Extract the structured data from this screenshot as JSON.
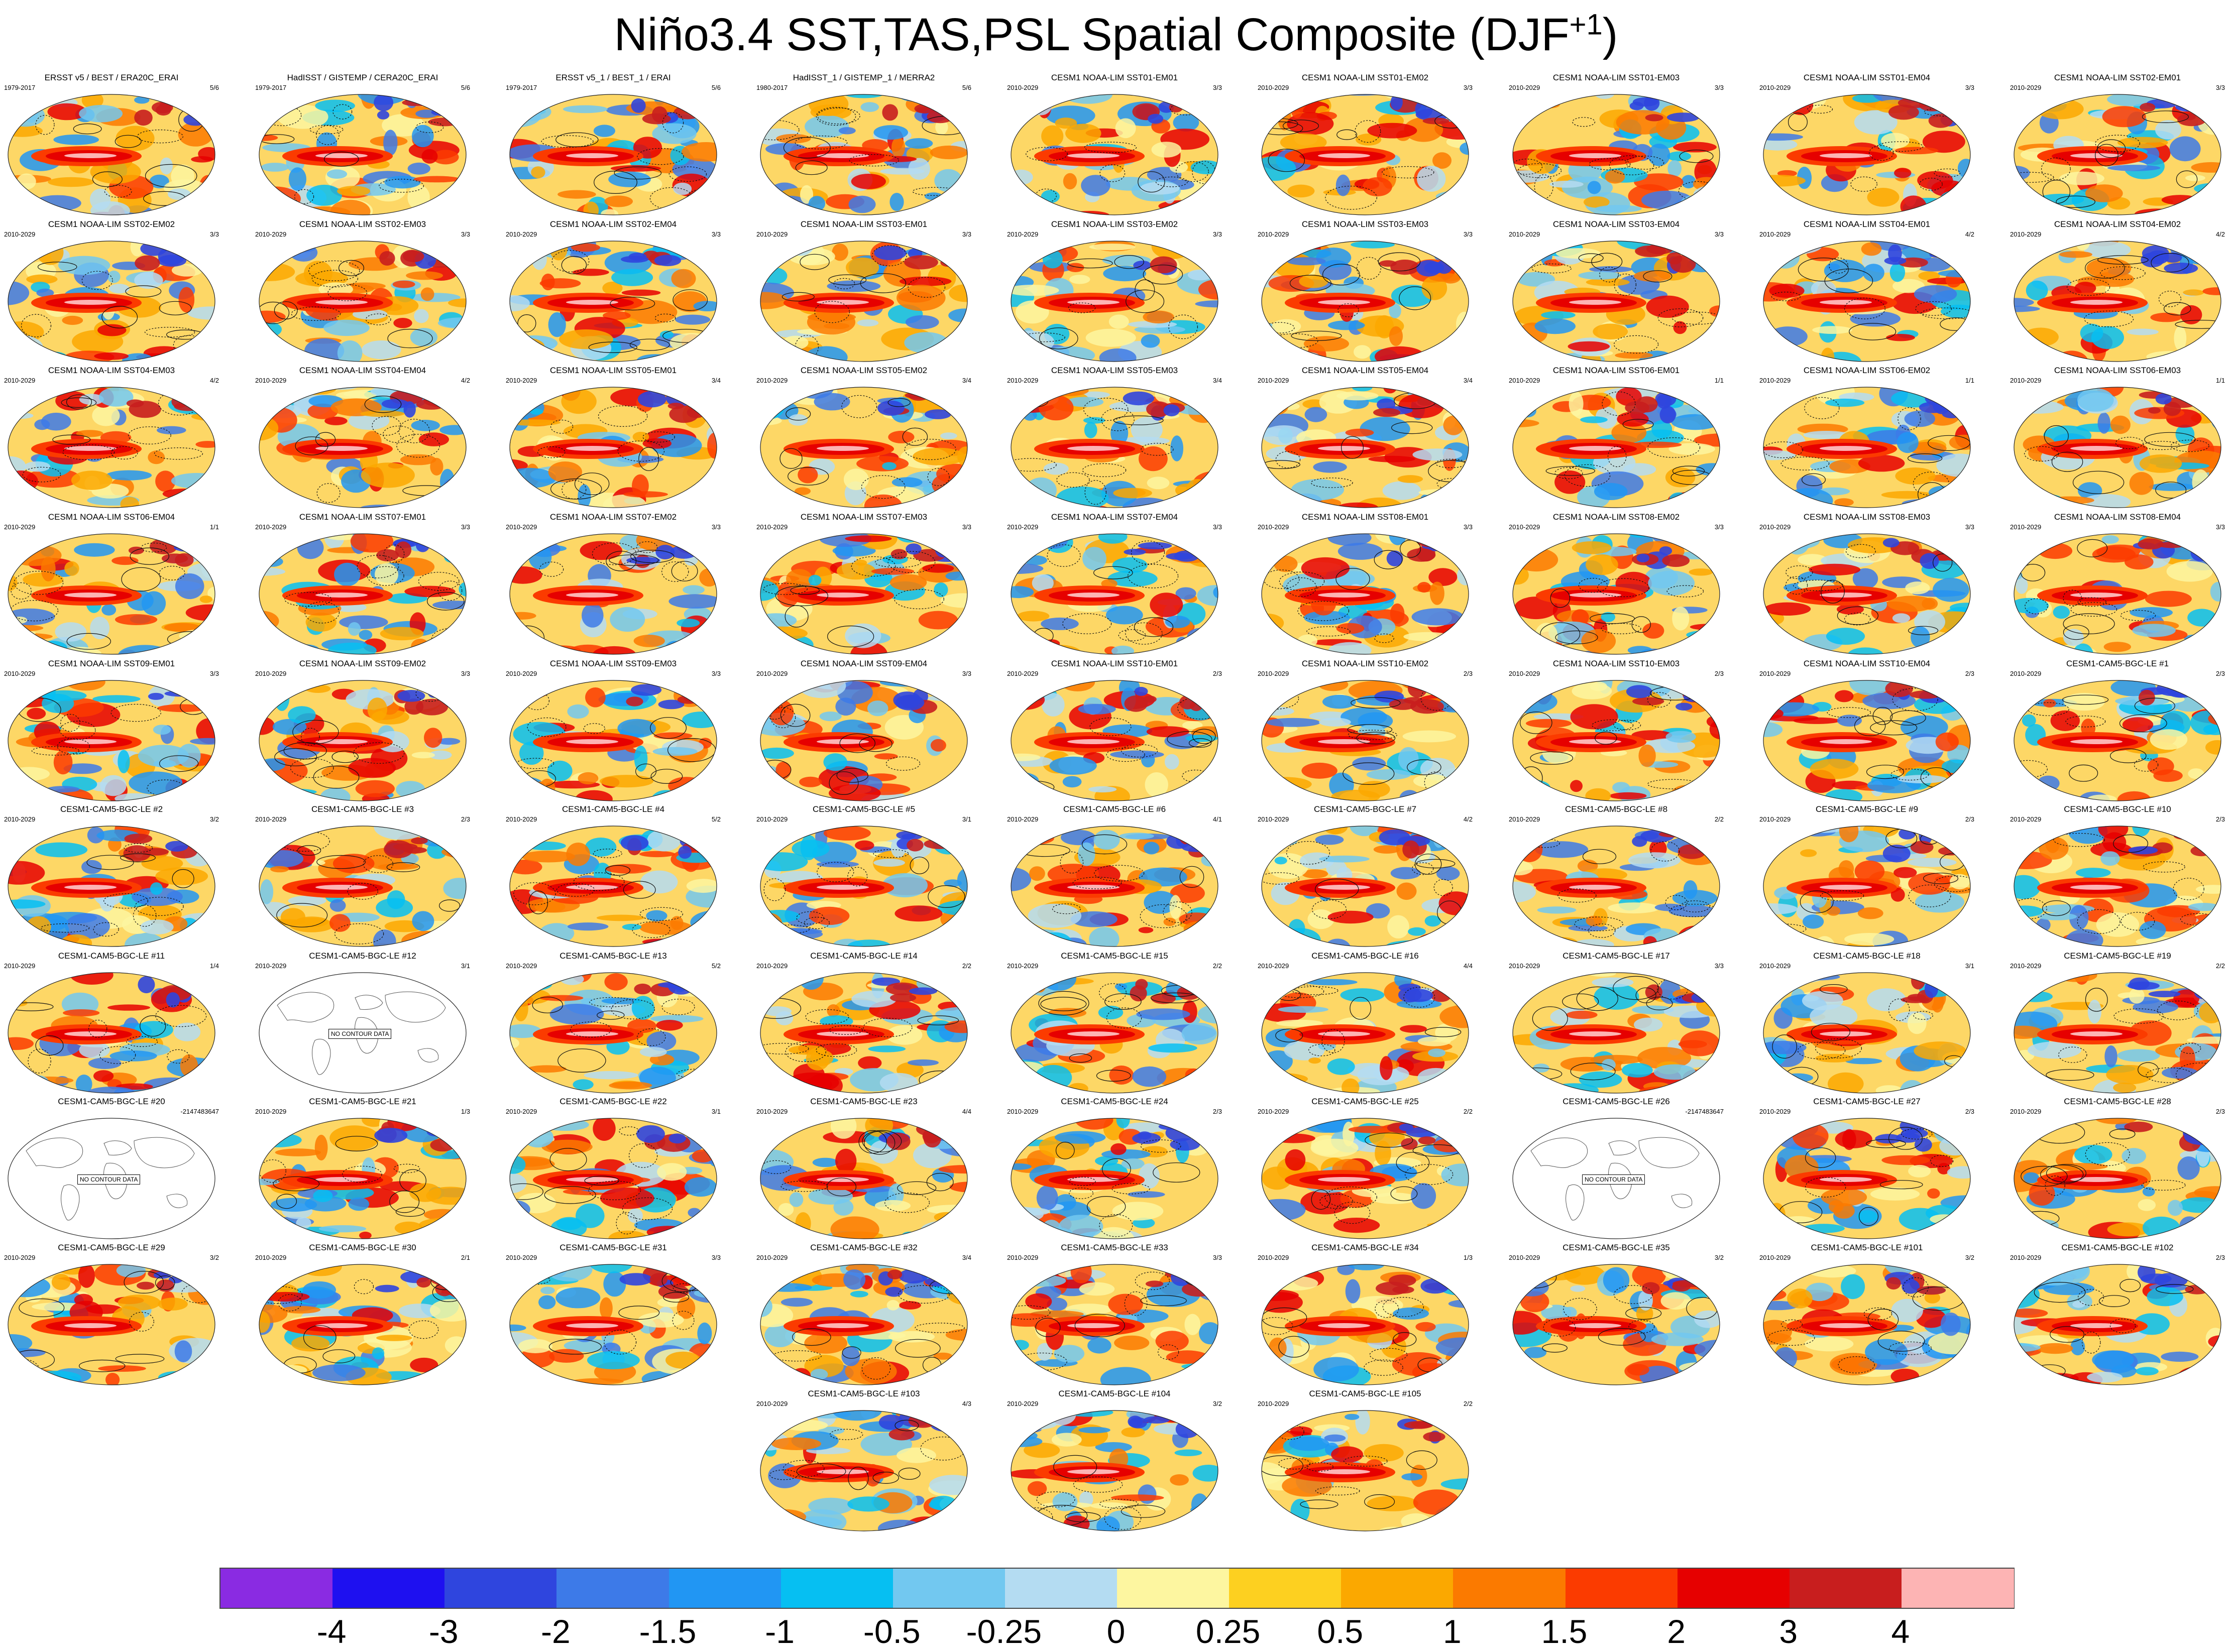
{
  "figure": {
    "title_main": "Niño3.4 SST,TAS,PSL Spatial Composite (DJF",
    "title_sup": "+1",
    "title_end": ")",
    "no_data_text": "NO CONTOUR DATA"
  },
  "panels": [
    {
      "title": "ERSST v5 / BEST / ERA20C_ERAI",
      "years": "1979-2017",
      "ratio": "5/6"
    },
    {
      "title": "HadISST / GISTEMP / CERA20C_ERAI",
      "years": "1979-2017",
      "ratio": "5/6"
    },
    {
      "title": "ERSST v5_1 / BEST_1 / ERAI",
      "years": "1979-2017",
      "ratio": "5/6"
    },
    {
      "title": "HadISST_1 / GISTEMP_1 / MERRA2",
      "years": "1980-2017",
      "ratio": "5/6"
    },
    {
      "title": "CESM1 NOAA-LIM SST01-EM01",
      "years": "2010-2029",
      "ratio": "3/3"
    },
    {
      "title": "CESM1 NOAA-LIM SST01-EM02",
      "years": "2010-2029",
      "ratio": "3/3"
    },
    {
      "title": "CESM1 NOAA-LIM SST01-EM03",
      "years": "2010-2029",
      "ratio": "3/3"
    },
    {
      "title": "CESM1 NOAA-LIM SST01-EM04",
      "years": "2010-2029",
      "ratio": "3/3"
    },
    {
      "title": "CESM1 NOAA-LIM SST02-EM01",
      "years": "2010-2029",
      "ratio": "3/3"
    },
    {
      "title": "CESM1 NOAA-LIM SST02-EM02",
      "years": "2010-2029",
      "ratio": "3/3"
    },
    {
      "title": "CESM1 NOAA-LIM SST02-EM03",
      "years": "2010-2029",
      "ratio": "3/3"
    },
    {
      "title": "CESM1 NOAA-LIM SST02-EM04",
      "years": "2010-2029",
      "ratio": "3/3"
    },
    {
      "title": "CESM1 NOAA-LIM SST03-EM01",
      "years": "2010-2029",
      "ratio": "3/3"
    },
    {
      "title": "CESM1 NOAA-LIM SST03-EM02",
      "years": "2010-2029",
      "ratio": "3/3"
    },
    {
      "title": "CESM1 NOAA-LIM SST03-EM03",
      "years": "2010-2029",
      "ratio": "3/3"
    },
    {
      "title": "CESM1 NOAA-LIM SST03-EM04",
      "years": "2010-2029",
      "ratio": "3/3"
    },
    {
      "title": "CESM1 NOAA-LIM SST04-EM01",
      "years": "2010-2029",
      "ratio": "4/2"
    },
    {
      "title": "CESM1 NOAA-LIM SST04-EM02",
      "years": "2010-2029",
      "ratio": "4/2"
    },
    {
      "title": "CESM1 NOAA-LIM SST04-EM03",
      "years": "2010-2029",
      "ratio": "4/2"
    },
    {
      "title": "CESM1 NOAA-LIM SST04-EM04",
      "years": "2010-2029",
      "ratio": "4/2"
    },
    {
      "title": "CESM1 NOAA-LIM SST05-EM01",
      "years": "2010-2029",
      "ratio": "3/4"
    },
    {
      "title": "CESM1 NOAA-LIM SST05-EM02",
      "years": "2010-2029",
      "ratio": "3/4"
    },
    {
      "title": "CESM1 NOAA-LIM SST05-EM03",
      "years": "2010-2029",
      "ratio": "3/4"
    },
    {
      "title": "CESM1 NOAA-LIM SST05-EM04",
      "years": "2010-2029",
      "ratio": "3/4"
    },
    {
      "title": "CESM1 NOAA-LIM SST06-EM01",
      "years": "2010-2029",
      "ratio": "1/1"
    },
    {
      "title": "CESM1 NOAA-LIM SST06-EM02",
      "years": "2010-2029",
      "ratio": "1/1"
    },
    {
      "title": "CESM1 NOAA-LIM SST06-EM03",
      "years": "2010-2029",
      "ratio": "1/1"
    },
    {
      "title": "CESM1 NOAA-LIM SST06-EM04",
      "years": "2010-2029",
      "ratio": "1/1"
    },
    {
      "title": "CESM1 NOAA-LIM SST07-EM01",
      "years": "2010-2029",
      "ratio": "3/3"
    },
    {
      "title": "CESM1 NOAA-LIM SST07-EM02",
      "years": "2010-2029",
      "ratio": "3/3"
    },
    {
      "title": "CESM1 NOAA-LIM SST07-EM03",
      "years": "2010-2029",
      "ratio": "3/3"
    },
    {
      "title": "CESM1 NOAA-LIM SST07-EM04",
      "years": "2010-2029",
      "ratio": "3/3"
    },
    {
      "title": "CESM1 NOAA-LIM SST08-EM01",
      "years": "2010-2029",
      "ratio": "3/3"
    },
    {
      "title": "CESM1 NOAA-LIM SST08-EM02",
      "years": "2010-2029",
      "ratio": "3/3"
    },
    {
      "title": "CESM1 NOAA-LIM SST08-EM03",
      "years": "2010-2029",
      "ratio": "3/3"
    },
    {
      "title": "CESM1 NOAA-LIM SST08-EM04",
      "years": "2010-2029",
      "ratio": "3/3"
    },
    {
      "title": "CESM1 NOAA-LIM SST09-EM01",
      "years": "2010-2029",
      "ratio": "3/3"
    },
    {
      "title": "CESM1 NOAA-LIM SST09-EM02",
      "years": "2010-2029",
      "ratio": "3/3"
    },
    {
      "title": "CESM1 NOAA-LIM SST09-EM03",
      "years": "2010-2029",
      "ratio": "3/3"
    },
    {
      "title": "CESM1 NOAA-LIM SST09-EM04",
      "years": "2010-2029",
      "ratio": "3/3"
    },
    {
      "title": "CESM1 NOAA-LIM SST10-EM01",
      "years": "2010-2029",
      "ratio": "2/3"
    },
    {
      "title": "CESM1 NOAA-LIM SST10-EM02",
      "years": "2010-2029",
      "ratio": "2/3"
    },
    {
      "title": "CESM1 NOAA-LIM SST10-EM03",
      "years": "2010-2029",
      "ratio": "2/3"
    },
    {
      "title": "CESM1 NOAA-LIM SST10-EM04",
      "years": "2010-2029",
      "ratio": "2/3"
    },
    {
      "title": "CESM1-CAM5-BGC-LE #1",
      "years": "2010-2029",
      "ratio": "2/3"
    },
    {
      "title": "CESM1-CAM5-BGC-LE #2",
      "years": "2010-2029",
      "ratio": "3/2"
    },
    {
      "title": "CESM1-CAM5-BGC-LE #3",
      "years": "2010-2029",
      "ratio": "2/3"
    },
    {
      "title": "CESM1-CAM5-BGC-LE #4",
      "years": "2010-2029",
      "ratio": "5/2"
    },
    {
      "title": "CESM1-CAM5-BGC-LE #5",
      "years": "2010-2029",
      "ratio": "3/1"
    },
    {
      "title": "CESM1-CAM5-BGC-LE #6",
      "years": "2010-2029",
      "ratio": "4/1"
    },
    {
      "title": "CESM1-CAM5-BGC-LE #7",
      "years": "2010-2029",
      "ratio": "4/2"
    },
    {
      "title": "CESM1-CAM5-BGC-LE #8",
      "years": "2010-2029",
      "ratio": "2/2"
    },
    {
      "title": "CESM1-CAM5-BGC-LE #9",
      "years": "2010-2029",
      "ratio": "2/3"
    },
    {
      "title": "CESM1-CAM5-BGC-LE #10",
      "years": "2010-2029",
      "ratio": "2/3"
    },
    {
      "title": "CESM1-CAM5-BGC-LE #11",
      "years": "2010-2029",
      "ratio": "1/4"
    },
    {
      "title": "CESM1-CAM5-BGC-LE #12",
      "years": "2010-2029",
      "ratio": "3/1",
      "nodata": true
    },
    {
      "title": "CESM1-CAM5-BGC-LE #13",
      "years": "2010-2029",
      "ratio": "5/2"
    },
    {
      "title": "CESM1-CAM5-BGC-LE #14",
      "years": "2010-2029",
      "ratio": "2/2"
    },
    {
      "title": "CESM1-CAM5-BGC-LE #15",
      "years": "2010-2029",
      "ratio": "2/2"
    },
    {
      "title": "CESM1-CAM5-BGC-LE #16",
      "years": "2010-2029",
      "ratio": "4/4"
    },
    {
      "title": "CESM1-CAM5-BGC-LE #17",
      "years": "2010-2029",
      "ratio": "3/3"
    },
    {
      "title": "CESM1-CAM5-BGC-LE #18",
      "years": "2010-2029",
      "ratio": "3/1"
    },
    {
      "title": "CESM1-CAM5-BGC-LE #19",
      "years": "2010-2029",
      "ratio": "2/2"
    },
    {
      "title": "CESM1-CAM5-BGC-LE #20",
      "years": "",
      "ratio": "-2147483647",
      "nodata": true
    },
    {
      "title": "CESM1-CAM5-BGC-LE #21",
      "years": "2010-2029",
      "ratio": "1/3"
    },
    {
      "title": "CESM1-CAM5-BGC-LE #22",
      "years": "2010-2029",
      "ratio": "3/1"
    },
    {
      "title": "CESM1-CAM5-BGC-LE #23",
      "years": "2010-2029",
      "ratio": "4/4"
    },
    {
      "title": "CESM1-CAM5-BGC-LE #24",
      "years": "2010-2029",
      "ratio": "2/3"
    },
    {
      "title": "CESM1-CAM5-BGC-LE #25",
      "years": "2010-2029",
      "ratio": "2/2"
    },
    {
      "title": "CESM1-CAM5-BGC-LE #26",
      "years": "",
      "ratio": "-2147483647",
      "nodata": true
    },
    {
      "title": "CESM1-CAM5-BGC-LE #27",
      "years": "2010-2029",
      "ratio": "2/3"
    },
    {
      "title": "CESM1-CAM5-BGC-LE #28",
      "years": "2010-2029",
      "ratio": "2/3"
    },
    {
      "title": "CESM1-CAM5-BGC-LE #29",
      "years": "2010-2029",
      "ratio": "3/2"
    },
    {
      "title": "CESM1-CAM5-BGC-LE #30",
      "years": "2010-2029",
      "ratio": "2/1"
    },
    {
      "title": "CESM1-CAM5-BGC-LE #31",
      "years": "2010-2029",
      "ratio": "3/3"
    },
    {
      "title": "CESM1-CAM5-BGC-LE #32",
      "years": "2010-2029",
      "ratio": "3/4"
    },
    {
      "title": "CESM1-CAM5-BGC-LE #33",
      "years": "2010-2029",
      "ratio": "3/3"
    },
    {
      "title": "CESM1-CAM5-BGC-LE #34",
      "years": "2010-2029",
      "ratio": "1/3"
    },
    {
      "title": "CESM1-CAM5-BGC-LE #35",
      "years": "2010-2029",
      "ratio": "3/2"
    },
    {
      "title": "CESM1-CAM5-BGC-LE #101",
      "years": "2010-2029",
      "ratio": "3/2"
    },
    {
      "title": "CESM1-CAM5-BGC-LE #102",
      "years": "2010-2029",
      "ratio": "2/3"
    },
    {
      "title": "CESM1-CAM5-BGC-LE #103",
      "years": "2010-2029",
      "ratio": "4/3"
    },
    {
      "title": "CESM1-CAM5-BGC-LE #104",
      "years": "2010-2029",
      "ratio": "3/2"
    },
    {
      "title": "CESM1-CAM5-BGC-LE #105",
      "years": "2010-2029",
      "ratio": "2/2"
    }
  ],
  "colorbar": {
    "colors": [
      "#8a2be2",
      "#1e10f0",
      "#2f45de",
      "#3d7ae8",
      "#2196f3",
      "#06bff2",
      "#72c8f0",
      "#b4dcf2",
      "#fdf6a0",
      "#fdd020",
      "#fba800",
      "#fb7a00",
      "#fb3b00",
      "#e60000",
      "#c81e1e",
      "#fdb4b4"
    ],
    "labels": [
      "-4",
      "-3",
      "-2",
      "-1.5",
      "-1",
      "-0.5",
      "-0.25",
      "0",
      "0.25",
      "0.5",
      "1",
      "1.5",
      "2",
      "3",
      "4"
    ]
  }
}
